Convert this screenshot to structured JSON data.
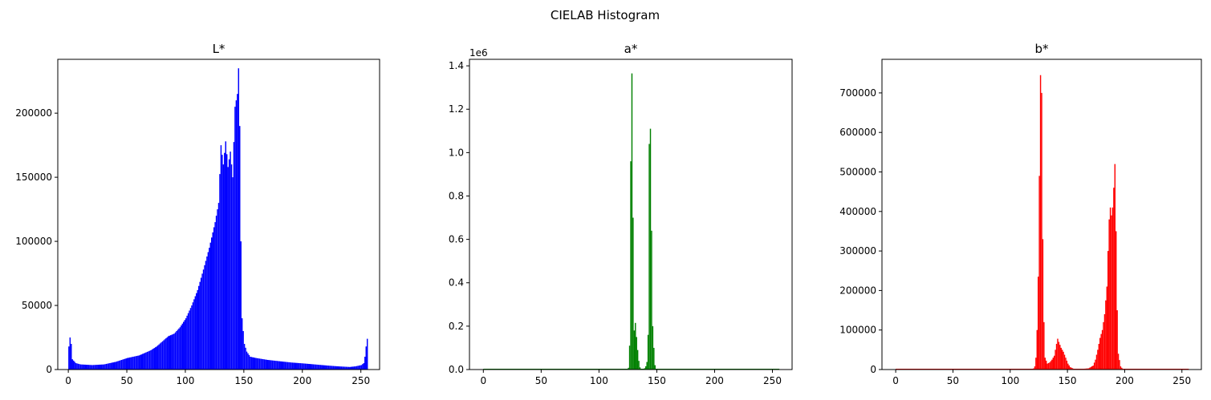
{
  "figure": {
    "title": "CIELAB Histogram"
  },
  "chart_data": [
    {
      "type": "bar",
      "title": "L*",
      "color": "#0000ff",
      "xlim": [
        -9,
        266
      ],
      "ylim": [
        0,
        242000
      ],
      "xticks": [
        0,
        50,
        100,
        150,
        200,
        250
      ],
      "yticks": [
        0,
        50000,
        100000,
        150000,
        200000
      ],
      "y_offset_label": "",
      "anchors": [
        [
          0,
          18000
        ],
        [
          1,
          25000
        ],
        [
          2,
          20000
        ],
        [
          3,
          8000
        ],
        [
          6,
          5000
        ],
        [
          10,
          4000
        ],
        [
          20,
          3500
        ],
        [
          30,
          4000
        ],
        [
          40,
          6000
        ],
        [
          50,
          9000
        ],
        [
          60,
          11000
        ],
        [
          70,
          15000
        ],
        [
          75,
          18000
        ],
        [
          80,
          22000
        ],
        [
          85,
          26000
        ],
        [
          90,
          28000
        ],
        [
          95,
          33000
        ],
        [
          100,
          40000
        ],
        [
          105,
          50000
        ],
        [
          110,
          62000
        ],
        [
          115,
          78000
        ],
        [
          120,
          95000
        ],
        [
          125,
          115000
        ],
        [
          128,
          130000
        ],
        [
          130,
          175000
        ],
        [
          132,
          160000
        ],
        [
          134,
          178000
        ],
        [
          136,
          158000
        ],
        [
          138,
          170000
        ],
        [
          140,
          150000
        ],
        [
          142,
          205000
        ],
        [
          144,
          215000
        ],
        [
          145,
          235000
        ],
        [
          146,
          190000
        ],
        [
          147,
          100000
        ],
        [
          148,
          40000
        ],
        [
          150,
          20000
        ],
        [
          152,
          14000
        ],
        [
          155,
          10000
        ],
        [
          160,
          9000
        ],
        [
          170,
          7500
        ],
        [
          180,
          6500
        ],
        [
          190,
          5500
        ],
        [
          200,
          4800
        ],
        [
          210,
          4000
        ],
        [
          220,
          3200
        ],
        [
          230,
          2500
        ],
        [
          240,
          2000
        ],
        [
          245,
          2500
        ],
        [
          250,
          3500
        ],
        [
          252,
          5000
        ],
        [
          253,
          10000
        ],
        [
          254,
          18000
        ],
        [
          255,
          24000
        ]
      ]
    },
    {
      "type": "bar",
      "title": "a*",
      "color": "#008000",
      "xlim": [
        -12,
        267
      ],
      "ylim": [
        0,
        1430000
      ],
      "xticks": [
        0,
        50,
        100,
        150,
        200,
        250
      ],
      "yticks": [
        0,
        200000,
        400000,
        600000,
        800000,
        1000000,
        1200000,
        1400000
      ],
      "ytick_labels": [
        "0.0",
        "0.2",
        "0.4",
        "0.6",
        "0.8",
        "1.0",
        "1.2",
        "1.4"
      ],
      "y_offset_label": "1e6",
      "anchors": [
        [
          0,
          0
        ],
        [
          122,
          0
        ],
        [
          124,
          1000
        ],
        [
          125,
          8000
        ],
        [
          126,
          110000
        ],
        [
          127,
          960000
        ],
        [
          128,
          1365000
        ],
        [
          129,
          700000
        ],
        [
          130,
          180000
        ],
        [
          131,
          215000
        ],
        [
          132,
          150000
        ],
        [
          133,
          90000
        ],
        [
          134,
          40000
        ],
        [
          135,
          10000
        ],
        [
          136,
          2000
        ],
        [
          137,
          1000
        ],
        [
          138,
          2000
        ],
        [
          139,
          6000
        ],
        [
          140,
          15000
        ],
        [
          141,
          35000
        ],
        [
          142,
          160000
        ],
        [
          143,
          1040000
        ],
        [
          144,
          1110000
        ],
        [
          145,
          640000
        ],
        [
          146,
          200000
        ],
        [
          147,
          100000
        ],
        [
          148,
          20000
        ],
        [
          149,
          2000
        ],
        [
          150,
          0
        ],
        [
          255,
          0
        ]
      ]
    },
    {
      "type": "bar",
      "title": "b*",
      "color": "#ff0000",
      "xlim": [
        -12,
        267
      ],
      "ylim": [
        0,
        785000
      ],
      "xticks": [
        0,
        50,
        100,
        150,
        200,
        250
      ],
      "yticks": [
        0,
        100000,
        200000,
        300000,
        400000,
        500000,
        600000,
        700000
      ],
      "y_offset_label": "",
      "anchors": [
        [
          0,
          0
        ],
        [
          118,
          0
        ],
        [
          120,
          3000
        ],
        [
          121,
          8000
        ],
        [
          122,
          30000
        ],
        [
          123,
          100000
        ],
        [
          124,
          235000
        ],
        [
          125,
          490000
        ],
        [
          126,
          745000
        ],
        [
          127,
          700000
        ],
        [
          128,
          330000
        ],
        [
          129,
          120000
        ],
        [
          130,
          30000
        ],
        [
          132,
          15000
        ],
        [
          134,
          18000
        ],
        [
          136,
          25000
        ],
        [
          138,
          35000
        ],
        [
          140,
          65000
        ],
        [
          141,
          78000
        ],
        [
          142,
          70000
        ],
        [
          144,
          55000
        ],
        [
          146,
          45000
        ],
        [
          148,
          30000
        ],
        [
          150,
          15000
        ],
        [
          152,
          6000
        ],
        [
          155,
          2000
        ],
        [
          160,
          1000
        ],
        [
          168,
          3000
        ],
        [
          172,
          10000
        ],
        [
          174,
          25000
        ],
        [
          176,
          50000
        ],
        [
          178,
          80000
        ],
        [
          180,
          100000
        ],
        [
          182,
          140000
        ],
        [
          184,
          210000
        ],
        [
          185,
          300000
        ],
        [
          186,
          380000
        ],
        [
          187,
          410000
        ],
        [
          188,
          390000
        ],
        [
          189,
          410000
        ],
        [
          190,
          460000
        ],
        [
          191,
          520000
        ],
        [
          192,
          350000
        ],
        [
          193,
          150000
        ],
        [
          194,
          40000
        ],
        [
          196,
          8000
        ],
        [
          198,
          1000
        ],
        [
          200,
          0
        ],
        [
          255,
          0
        ]
      ]
    }
  ]
}
